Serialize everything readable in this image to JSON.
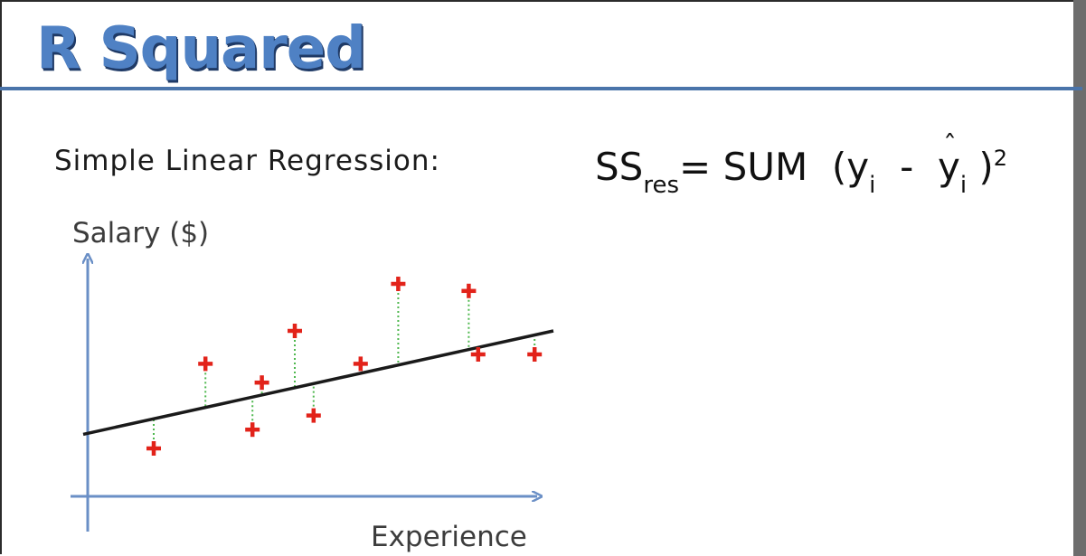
{
  "slide": {
    "title": "R Squared",
    "subtitle": "Simple Linear Regression:",
    "formula": {
      "ss": "SS",
      "res": "res",
      "equals": "=",
      "func": "SUM",
      "open": "(y",
      "i1": "i",
      "minus": "-",
      "y2": "y",
      "i2": "i",
      "close": ")",
      "power": "2"
    }
  },
  "colors": {
    "title": "#4f81c4",
    "axis": "#6a8fc6",
    "line": "#1a1a1a",
    "points": "#e2231a",
    "residuals": "#4fb84f"
  },
  "chart_data": {
    "type": "scatter",
    "xlabel": "Experience",
    "ylabel": "Salary ($)",
    "xlim": [
      0,
      10
    ],
    "ylim": [
      0,
      10
    ],
    "regression_line": {
      "intercept": 2.6,
      "slope": 0.44
    },
    "points": [
      {
        "x": 1.5,
        "y": 2.0
      },
      {
        "x": 2.6,
        "y": 5.6
      },
      {
        "x": 3.6,
        "y": 2.8
      },
      {
        "x": 3.8,
        "y": 4.8
      },
      {
        "x": 4.5,
        "y": 7.0
      },
      {
        "x": 4.9,
        "y": 3.4
      },
      {
        "x": 5.9,
        "y": 5.6
      },
      {
        "x": 6.7,
        "y": 9.0
      },
      {
        "x": 8.2,
        "y": 8.7
      },
      {
        "x": 8.4,
        "y": 6.0
      },
      {
        "x": 9.6,
        "y": 6.0
      }
    ]
  }
}
